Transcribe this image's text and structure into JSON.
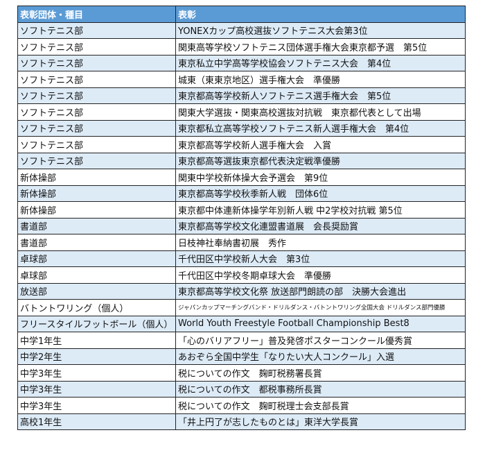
{
  "header": {
    "col1": "表彰団体・種目",
    "col2": "表彰"
  },
  "colors": {
    "header": "#5b9bd5",
    "stripe": "#ddebf7"
  },
  "rows": [
    {
      "group": "ソフトテニス部",
      "award": "YONEXカップ高校選抜ソフトテニス大会第3位"
    },
    {
      "group": "ソフトテニス部",
      "award": "関東高等学校ソフトテニス団体選手権大会東京都予選　第5位"
    },
    {
      "group": "ソフトテニス部",
      "award": "東京私立中学高等学校協会ソフトテニス大会　第4位"
    },
    {
      "group": "ソフトテニス部",
      "award": "城東（東東京地区）選手権大会　準優勝"
    },
    {
      "group": "ソフトテニス部",
      "award": "東京都高等学校新人ソフトテニス選手権大会　第5位"
    },
    {
      "group": "ソフトテニス部",
      "award": "関東大学選抜・関東高校選抜対抗戦　東京都代表として出場"
    },
    {
      "group": "ソフトテニス部",
      "award": "東京都私立高等学校ソフトテニス新人選手権大会　第4位"
    },
    {
      "group": "ソフトテニス部",
      "award": "東京都高等学校新人選手権大会　入賞"
    },
    {
      "group": "ソフトテニス部",
      "award": "東京都高等選抜東京都代表決定戦準優勝"
    },
    {
      "group": "新体操部",
      "award": "関東中学校新体操大会予選会　第9位"
    },
    {
      "group": "新体操部",
      "award": "東京都高等学校秋季新人戦　団体6位"
    },
    {
      "group": "新体操部",
      "award": "東京都中体連新体操学年別新人戦 中2学校対抗戦 第5位"
    },
    {
      "group": "書道部",
      "award": "東京都高等学校文化連盟書道展　会長奨励賞"
    },
    {
      "group": "書道部",
      "award": "日枝神社奉納書初展　秀作"
    },
    {
      "group": "卓球部",
      "award": "千代田区中学校新人大会　第3位"
    },
    {
      "group": "卓球部",
      "award": "千代田区中学校冬期卓球大会　準優勝"
    },
    {
      "group": "放送部",
      "award": "東京都高等学校文化祭 放送部門朗読の部　決勝大会進出"
    },
    {
      "group": "バトントワリング（個人）",
      "award": "ジャパンカップマーチングバンド・ドリルダンス・バトントワリング全国大会 ドリルダンス部門優勝"
    },
    {
      "group": "フリースタイルフットボール（個人）",
      "award": "World Youth Freestyle Football Championship Best8"
    },
    {
      "group": "中学1年生",
      "award": "「心のバリアフリー」普及発啓ポスターコンクール優秀賞"
    },
    {
      "group": "中学2年生",
      "award": "あおぞら全国中学生「なりたい大人コンクール」入選"
    },
    {
      "group": "中学3年生",
      "award": "税についての作文　麹町税務署長賞"
    },
    {
      "group": "中学3年生",
      "award": "税についての作文　都税事務所長賞"
    },
    {
      "group": "中学3年生",
      "award": "税についての作文　麹町税理士会支部長賞"
    },
    {
      "group": "高校1年生",
      "award": "「井上円了が志したものとは」東洋大学長賞"
    }
  ]
}
